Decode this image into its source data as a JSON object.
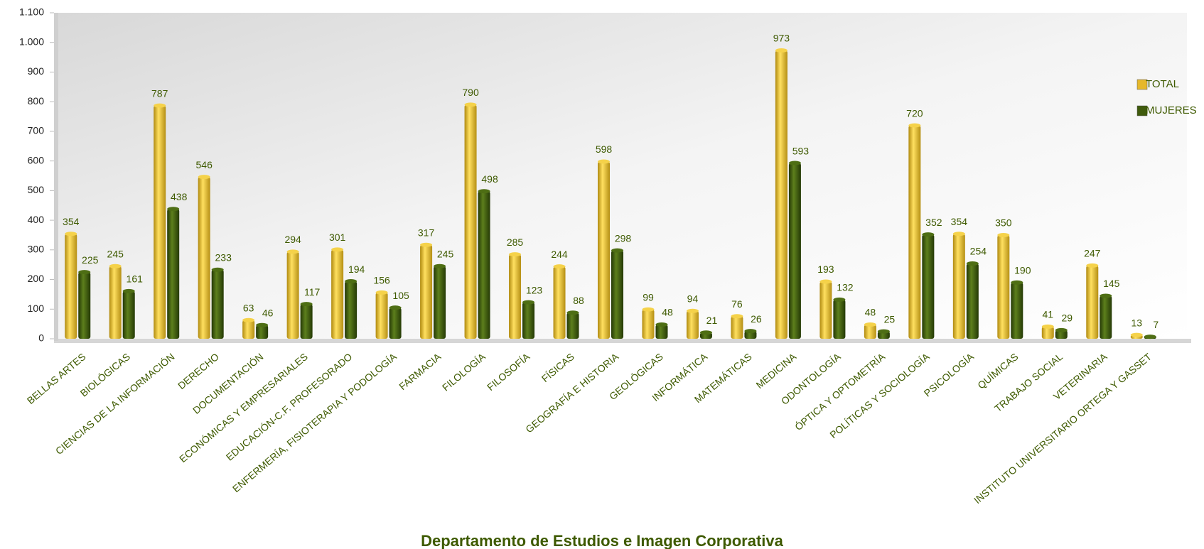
{
  "chart_data": {
    "type": "bar",
    "title": "Departamento de Estudios e Imagen Corporativa",
    "categories": [
      "BELLAS ARTES",
      "BIOLÓGICAS",
      "CIENCIAS DE LA INFORMACIÓN",
      "DERECHO",
      "DOCUMENTACIÓN",
      "ECONÓMICAS Y EMPRESARIALES",
      "EDUCACIÓN-C.F. PROFESORADO",
      "ENFERMERÍA, FISIOTERAPIA Y PODOLOGÍA",
      "FARMACIA",
      "FILOLOGÍA",
      "FILOSOFÍA",
      "FÍSICAS",
      "GEOGRAFÍA E HISTORIA",
      "GEOLÓGICAS",
      "INFORMÁTICA",
      "MATEMÁTICAS",
      "MEDICINA",
      "ODONTOLOGÍA",
      "ÓPTICA Y OPTOMETRÍA",
      "POLÍTICAS Y SOCIOLOGÍA",
      "PSICOLOGÍA",
      "QUÍMICAS",
      "TRABAJO SOCIAL",
      "VETERINARIA",
      "INSTITUTO UNIVERSITARIO ORTEGA Y GASSET"
    ],
    "series": [
      {
        "name": "TOTAL",
        "color": "#e6b82a",
        "values": [
          354,
          245,
          787,
          546,
          63,
          294,
          301,
          156,
          317,
          790,
          285,
          244,
          598,
          99,
          94,
          76,
          973,
          193,
          48,
          720,
          354,
          350,
          41,
          247,
          13
        ]
      },
      {
        "name": "MUJERES",
        "color": "#3f5a0c",
        "values": [
          225,
          161,
          438,
          233,
          46,
          117,
          194,
          105,
          245,
          498,
          123,
          88,
          298,
          48,
          21,
          26,
          593,
          132,
          25,
          352,
          254,
          190,
          29,
          145,
          7
        ]
      }
    ],
    "ylim": [
      0,
      1100
    ],
    "yticks": [
      0,
      100,
      200,
      300,
      400,
      500,
      600,
      700,
      800,
      900,
      {
        "value": 1000,
        "label": "1.000"
      },
      {
        "value": 1100,
        "label": "1.100"
      }
    ],
    "legend": "right"
  }
}
